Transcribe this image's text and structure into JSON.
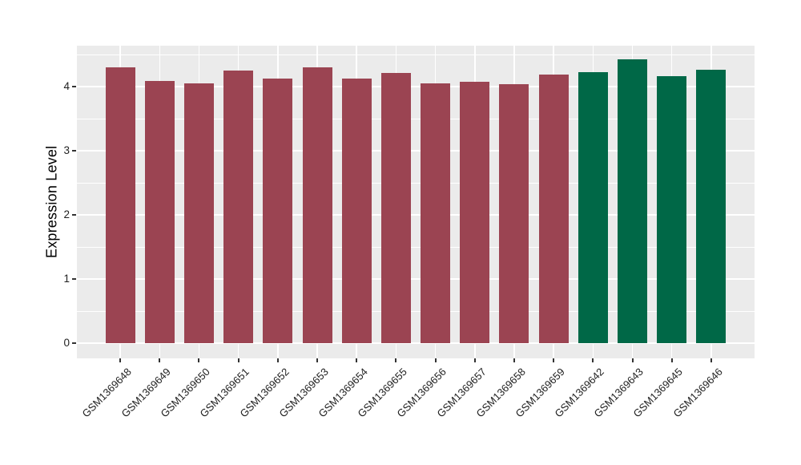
{
  "figure": {
    "background_color": "#FFFFFF",
    "panel_background_color": "#EBEBEB",
    "gridline_color": "#FFFFFF",
    "tick_color": "#333333",
    "axis_text_color": "#1F1F1F"
  },
  "chart_data": {
    "type": "bar",
    "title": "",
    "xlabel": "",
    "ylabel": "Expression Level",
    "ylim": [
      0,
      4.65
    ],
    "yticks": [
      0,
      1,
      2,
      3,
      4
    ],
    "minor_gridlines": [
      0.5,
      1.5,
      2.5,
      3.5,
      4.5
    ],
    "grid": true,
    "legend_position": "none",
    "categories": [
      "GSM1369648",
      "GSM1369649",
      "GSM1369650",
      "GSM1369651",
      "GSM1369652",
      "GSM1369653",
      "GSM1369654",
      "GSM1369655",
      "GSM1369656",
      "GSM1369657",
      "GSM1369658",
      "GSM1369659",
      "GSM1369642",
      "GSM1369643",
      "GSM1369645",
      "GSM1369646"
    ],
    "values": [
      4.3,
      4.09,
      4.05,
      4.25,
      4.12,
      4.3,
      4.13,
      4.21,
      4.05,
      4.07,
      4.04,
      4.19,
      4.23,
      4.43,
      4.16,
      4.26
    ],
    "bar_colors": [
      "#9B4452",
      "#9B4452",
      "#9B4452",
      "#9B4452",
      "#9B4452",
      "#9B4452",
      "#9B4452",
      "#9B4452",
      "#9B4452",
      "#9B4452",
      "#9B4452",
      "#9B4452",
      "#006847",
      "#006847",
      "#006847",
      "#006847"
    ],
    "group_colors": {
      "red_group": "#9B4452",
      "green_group": "#006847"
    }
  }
}
